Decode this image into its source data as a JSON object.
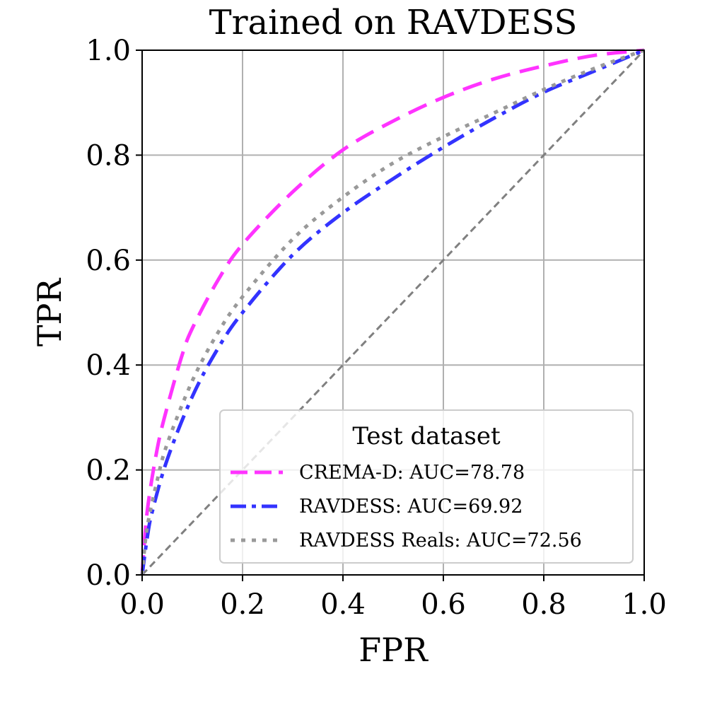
{
  "chart_data": {
    "type": "line",
    "title": "Trained on RAVDESS",
    "xlabel": "FPR",
    "ylabel": "TPR",
    "xlim": [
      0,
      1
    ],
    "ylim": [
      0,
      1
    ],
    "xticks": [
      "0.0",
      "0.2",
      "0.4",
      "0.6",
      "0.8",
      "1.0"
    ],
    "yticks": [
      "0.0",
      "0.2",
      "0.4",
      "0.6",
      "0.8",
      "1.0"
    ],
    "grid": true,
    "legend": {
      "title": "Test dataset",
      "placement": "lower-right"
    },
    "series": [
      {
        "name": "CREMA-D: AUC=78.78",
        "color": "#ff33ff",
        "dash": "dashed",
        "x": [
          0,
          0.01,
          0.03,
          0.05,
          0.08,
          0.1,
          0.15,
          0.2,
          0.3,
          0.4,
          0.5,
          0.6,
          0.7,
          0.8,
          0.9,
          1.0
        ],
        "y": [
          0,
          0.12,
          0.24,
          0.32,
          0.42,
          0.47,
          0.56,
          0.63,
          0.73,
          0.81,
          0.865,
          0.91,
          0.945,
          0.97,
          0.99,
          1.0
        ]
      },
      {
        "name": "RAVDESS: AUC=69.92",
        "color": "#3333ff",
        "dash": "dashdot",
        "x": [
          0,
          0.01,
          0.02,
          0.05,
          0.1,
          0.15,
          0.2,
          0.3,
          0.4,
          0.5,
          0.6,
          0.7,
          0.8,
          0.9,
          1.0
        ],
        "y": [
          0,
          0.07,
          0.12,
          0.22,
          0.34,
          0.43,
          0.5,
          0.61,
          0.69,
          0.755,
          0.815,
          0.87,
          0.92,
          0.96,
          1.0
        ]
      },
      {
        "name": "RAVDESS Reals: AUC=72.56",
        "color": "#999999",
        "dash": "dotted",
        "x": [
          0,
          0.01,
          0.03,
          0.05,
          0.1,
          0.15,
          0.2,
          0.3,
          0.4,
          0.5,
          0.6,
          0.7,
          0.8,
          0.9,
          1.0
        ],
        "y": [
          0,
          0.09,
          0.18,
          0.25,
          0.37,
          0.46,
          0.53,
          0.64,
          0.72,
          0.785,
          0.835,
          0.88,
          0.925,
          0.965,
          1.0
        ]
      },
      {
        "name": "",
        "color": "#808080",
        "dash": "dashed",
        "x": [
          0,
          1
        ],
        "y": [
          0,
          1
        ]
      }
    ]
  }
}
